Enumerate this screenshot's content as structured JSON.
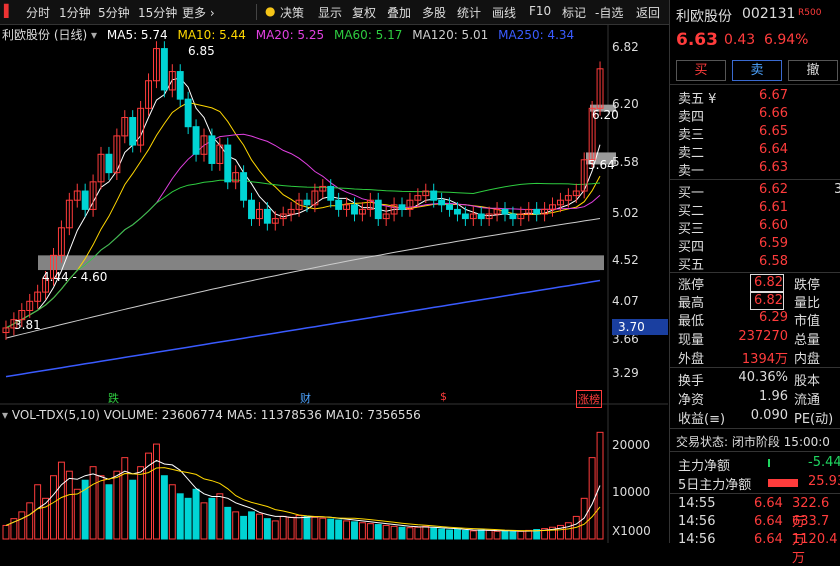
{
  "toolbar": {
    "items": [
      "分时",
      "1分钟",
      "5分钟",
      "15分钟",
      "更多 ›",
      "决策",
      "显示",
      "复权",
      "叠加",
      "多股",
      "统计",
      "画线",
      "F10",
      "标记",
      "-自选",
      "返回"
    ]
  },
  "chart": {
    "title": "利欧股份 (日线)",
    "ma_legend": [
      {
        "label": "MA5: 5.74",
        "color": "#ffffff"
      },
      {
        "label": "MA10: 5.44",
        "color": "#ffd700"
      },
      {
        "label": "MA20: 5.25",
        "color": "#e040e0"
      },
      {
        "label": "MA60: 5.17",
        "color": "#2ecc40"
      },
      {
        "label": "MA120: 5.01",
        "color": "#cccccc"
      },
      {
        "label": "MA250: 4.34",
        "color": "#3a5bff"
      }
    ],
    "price_ticks": [
      "6.82",
      "6.20",
      "5.58",
      "5.02",
      "4.52",
      "4.07",
      "3.66",
      "3.29"
    ],
    "annotations": {
      "high": "6.85",
      "low": "3.81",
      "zone": "4.44 - 4.60",
      "level1": "6.20",
      "level2": "5.64",
      "cursor_price": "3.70"
    },
    "markers": [
      "跌",
      "财",
      "$",
      "涨榜"
    ],
    "volume_legend": "VOL-TDX(5,10) VOLUME: 23606774 MA5: 11378536 MA10: 7356556",
    "vol_ticks": [
      "20000",
      "10000",
      "X1000"
    ],
    "vol_legend_colors": {
      "volume": "#ddd",
      "ma5": "#ffffff",
      "ma10": "#ffd700"
    }
  },
  "chart_data": {
    "type": "candlestick",
    "title": "利欧股份 (日线)",
    "y_range": [
      3.2,
      6.9
    ],
    "closes": [
      3.81,
      3.9,
      4.0,
      4.1,
      4.2,
      4.35,
      4.6,
      4.9,
      5.2,
      5.3,
      5.1,
      5.4,
      5.7,
      5.5,
      5.9,
      6.1,
      5.8,
      6.2,
      6.5,
      6.85,
      6.4,
      6.6,
      6.3,
      6.0,
      5.7,
      5.9,
      5.6,
      5.8,
      5.4,
      5.5,
      5.2,
      5.0,
      5.1,
      4.95,
      5.0,
      5.05,
      5.1,
      5.2,
      5.15,
      5.3,
      5.35,
      5.2,
      5.1,
      5.15,
      5.05,
      5.1,
      5.2,
      5.0,
      5.05,
      5.15,
      5.1,
      5.2,
      5.25,
      5.3,
      5.2,
      5.15,
      5.1,
      5.05,
      5.0,
      5.05,
      5.0,
      5.05,
      5.1,
      5.05,
      5.0,
      5.05,
      5.1,
      5.05,
      5.1,
      5.15,
      5.2,
      5.25,
      5.3,
      5.64,
      6.2,
      6.63
    ],
    "volumes": [
      3000,
      4500,
      6000,
      8000,
      12000,
      9000,
      14000,
      17000,
      15000,
      11000,
      13000,
      16000,
      14000,
      12000,
      15000,
      18000,
      13000,
      16000,
      19000,
      21000,
      14000,
      12000,
      10000,
      9000,
      11000,
      8000,
      9000,
      10000,
      7000,
      6000,
      5000,
      6000,
      5500,
      4500,
      4000,
      5000,
      4800,
      5200,
      5000,
      4800,
      4600,
      4400,
      4200,
      4000,
      3800,
      3600,
      3400,
      3200,
      3000,
      2800,
      2600,
      2500,
      2600,
      2800,
      2400,
      2200,
      2000,
      2100,
      1900,
      1800,
      2000,
      1900,
      1700,
      1800,
      1600,
      1700,
      1900,
      2100,
      2300,
      2600,
      3000,
      3600,
      5000,
      9000,
      18000,
      23600
    ]
  },
  "panel": {
    "stock_name": "利欧股份",
    "stock_code": "002131",
    "badge": "R500",
    "price": "6.63",
    "change": "0.43",
    "change_pct": "6.94%",
    "buttons": [
      "买",
      "卖",
      "撤"
    ],
    "asks": [
      {
        "label": "卖五 ¥",
        "price": "6.67"
      },
      {
        "label": "卖四",
        "price": "6.66"
      },
      {
        "label": "卖三",
        "price": "6.65"
      },
      {
        "label": "卖二",
        "price": "6.64"
      },
      {
        "label": "卖一",
        "price": "6.63"
      }
    ],
    "bids": [
      {
        "label": "买一",
        "price": "6.62",
        "qty": "3"
      },
      {
        "label": "买二",
        "price": "6.61",
        "qty": ""
      },
      {
        "label": "买三",
        "price": "6.60",
        "qty": ""
      },
      {
        "label": "买四",
        "price": "6.59",
        "qty": ""
      },
      {
        "label": "买五",
        "price": "6.58",
        "qty": ""
      }
    ],
    "stats_left": [
      {
        "label": "涨停",
        "value": "6.82",
        "color": "red",
        "boxed": true
      },
      {
        "label": "最高",
        "value": "6.82",
        "color": "red",
        "boxed": true
      },
      {
        "label": "最低",
        "value": "6.29",
        "color": "red",
        "boxed": false
      },
      {
        "label": "现量",
        "value": "237270",
        "color": "red",
        "boxed": false
      },
      {
        "label": "外盘",
        "value": "1394万",
        "color": "red",
        "boxed": false
      }
    ],
    "stats_right": [
      "跌停",
      "量比",
      "市值",
      "总量",
      "内盘"
    ],
    "stats2_left": [
      {
        "label": "换手",
        "value": "40.36%"
      },
      {
        "label": "净资",
        "value": "1.96"
      },
      {
        "label": "收益(≡)",
        "value": "0.090"
      }
    ],
    "stats2_right": [
      "股本",
      "流通",
      "PE(动)"
    ],
    "trade_status": "交易状态: 闭市阶段 15:00:0",
    "flows": [
      {
        "label": "主力净额",
        "value": "-5.44",
        "color": "green"
      },
      {
        "label": "5日主力净额",
        "value": "25.93",
        "color": "red"
      }
    ],
    "ticks": [
      {
        "time": "14:55",
        "price": "6.64",
        "amount": "322.6万"
      },
      {
        "time": "14:56",
        "price": "6.64",
        "amount": "633.7万"
      },
      {
        "time": "14:56",
        "price": "6.64",
        "amount": "1120.4万"
      }
    ]
  }
}
